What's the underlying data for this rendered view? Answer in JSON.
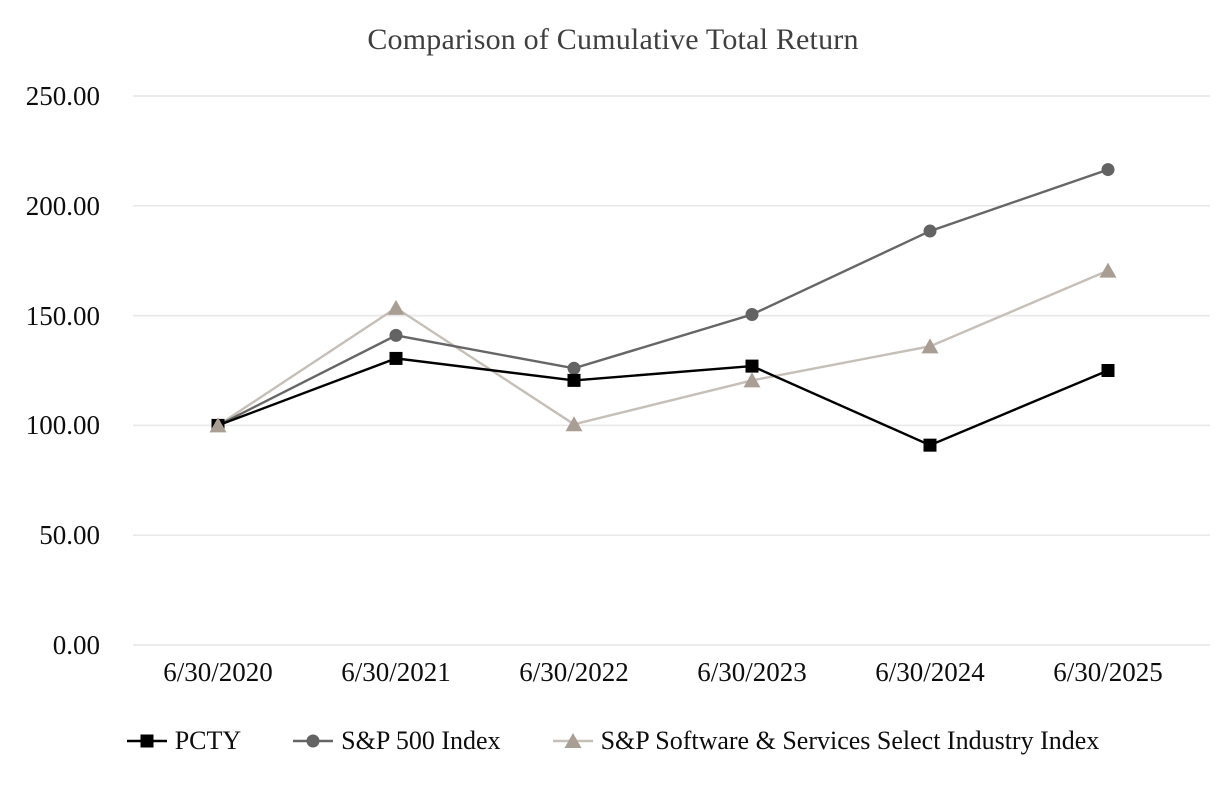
{
  "chart_data": {
    "type": "line",
    "title": "Comparison of Cumulative Total Return",
    "categories": [
      "6/30/2020",
      "6/30/2021",
      "6/30/2022",
      "6/30/2023",
      "6/30/2024",
      "6/30/2025"
    ],
    "series": [
      {
        "name": "PCTY",
        "marker": "square",
        "line_color": "#000000",
        "marker_color": "#000000",
        "values": [
          100,
          130.5,
          120.5,
          127,
          91,
          125
        ]
      },
      {
        "name": "S&P 500 Index",
        "marker": "circle",
        "line_color": "#666666",
        "marker_color": "#636363",
        "values": [
          100,
          141,
          126,
          150.5,
          188.5,
          216.5
        ]
      },
      {
        "name": "S&P Software & Services Select Industry Index",
        "marker": "triangle",
        "line_color": "#c5bfb8",
        "marker_color": "#a99e93",
        "values": [
          100,
          153.5,
          100.5,
          120.5,
          136,
          170.5
        ]
      }
    ],
    "ylim": [
      0,
      250
    ],
    "ytick_step": 50,
    "ytick_labels": [
      "0.00",
      "50.00",
      "100.00",
      "150.00",
      "200.00",
      "250.00"
    ],
    "grid": true,
    "gridline_color": "#e9e9e9",
    "legend_position": "bottom",
    "background_color": "#ffffff",
    "title_color": "#3f3f3f",
    "tick_label_color": "#0d0d0d"
  }
}
